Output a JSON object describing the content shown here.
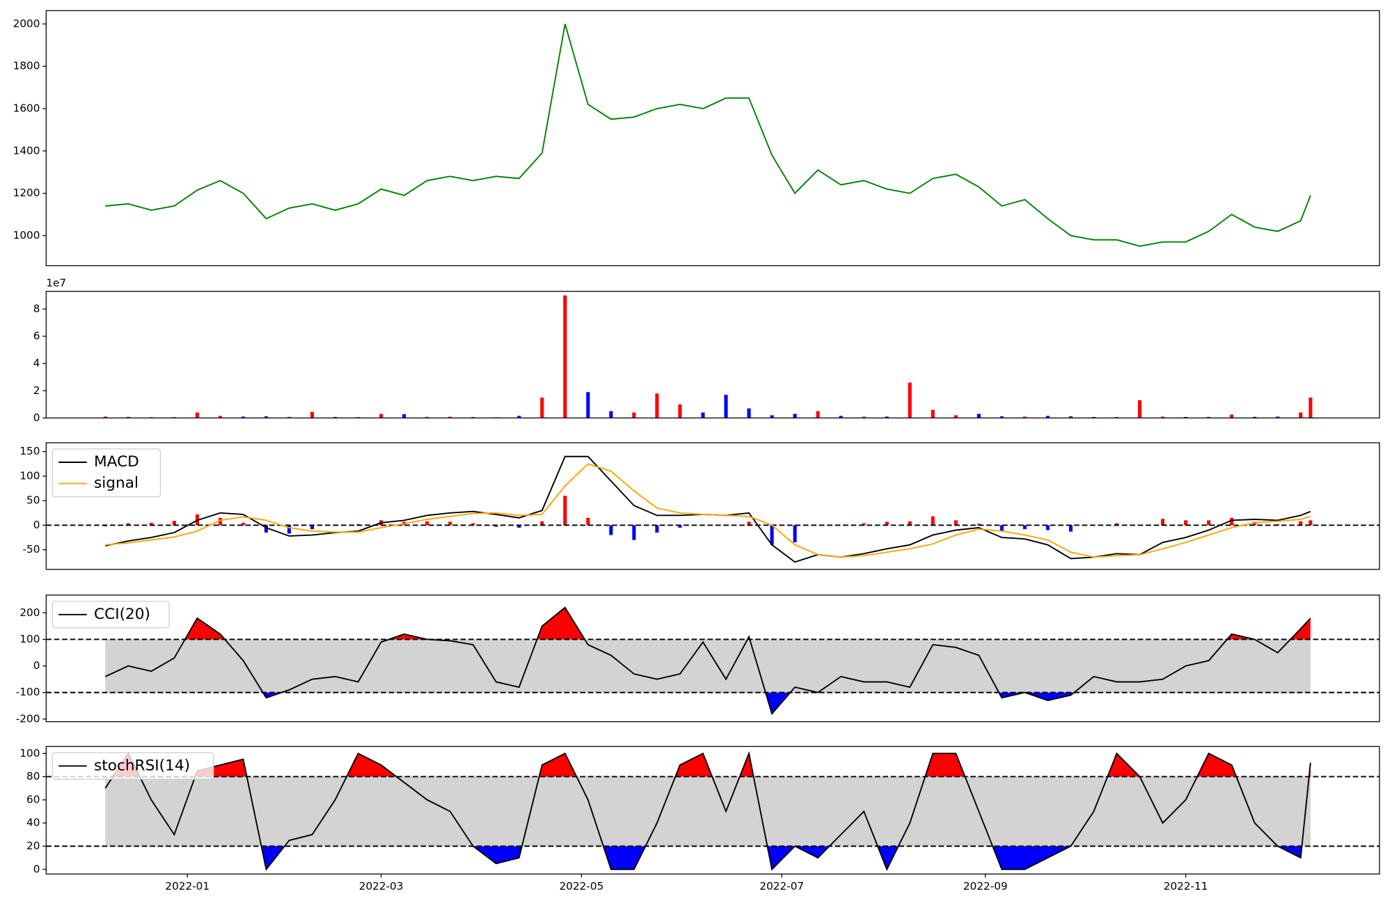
{
  "chart_data": [
    {
      "type": "line",
      "color": "#008000",
      "x": [
        "2021-12-07",
        "2021-12-14",
        "2021-12-21",
        "2021-12-28",
        "2022-01-04",
        "2022-01-11",
        "2022-01-18",
        "2022-01-25",
        "2022-02-01",
        "2022-02-08",
        "2022-02-15",
        "2022-02-22",
        "2022-03-01",
        "2022-03-08",
        "2022-03-15",
        "2022-03-22",
        "2022-03-29",
        "2022-04-05",
        "2022-04-12",
        "2022-04-19",
        "2022-04-26",
        "2022-05-03",
        "2022-05-10",
        "2022-05-17",
        "2022-05-24",
        "2022-05-31",
        "2022-06-07",
        "2022-06-14",
        "2022-06-21",
        "2022-06-28",
        "2022-07-05",
        "2022-07-12",
        "2022-07-19",
        "2022-07-26",
        "2022-08-02",
        "2022-08-09",
        "2022-08-16",
        "2022-08-23",
        "2022-08-30",
        "2022-09-06",
        "2022-09-13",
        "2022-09-20",
        "2022-09-27",
        "2022-10-04",
        "2022-10-11",
        "2022-10-18",
        "2022-10-25",
        "2022-11-01",
        "2022-11-08",
        "2022-11-15",
        "2022-11-22",
        "2022-11-29",
        "2022-12-06",
        "2022-12-09"
      ],
      "values": [
        1140,
        1150,
        1120,
        1140,
        1215,
        1260,
        1200,
        1080,
        1130,
        1150,
        1120,
        1150,
        1220,
        1190,
        1260,
        1280,
        1260,
        1280,
        1270,
        1390,
        2000,
        1620,
        1550,
        1560,
        1600,
        1620,
        1600,
        1650,
        1650,
        1380,
        1200,
        1310,
        1240,
        1260,
        1220,
        1200,
        1270,
        1290,
        1230,
        1140,
        1170,
        1080,
        1000,
        980,
        980,
        950,
        970,
        970,
        1020,
        1100,
        1040,
        1020,
        1070,
        1190
      ],
      "ylim": [
        858,
        2063
      ],
      "yticks": [
        1000,
        1200,
        1400,
        1600,
        1800,
        2000
      ]
    },
    {
      "type": "bar",
      "values": [
        1000000,
        800000,
        500000,
        600000,
        4000000,
        1500000,
        1000000,
        1200000,
        800000,
        4500000,
        700000,
        600000,
        3000000,
        2800000,
        800000,
        900000,
        600000,
        500000,
        1500000,
        15000000,
        90000000,
        19000000,
        5000000,
        4000000,
        18000000,
        10000000,
        4000000,
        17000000,
        7000000,
        2000000,
        3000000,
        5000000,
        1500000,
        1000000,
        1000000,
        26000000,
        6000000,
        2000000,
        3000000,
        1200000,
        1000000,
        1500000,
        1200000,
        700000,
        600000,
        13000000,
        1000000,
        700000,
        800000,
        2500000,
        800000,
        1000000,
        4000000,
        15000000
      ],
      "bar_colors": [
        "#ff0000",
        "#ff0000",
        "#0000ff",
        "#ff0000",
        "#ff0000",
        "#ff0000",
        "#0000ff",
        "#0000ff",
        "#ff0000",
        "#ff0000",
        "#0000ff",
        "#ff0000",
        "#ff0000",
        "#0000ff",
        "#ff0000",
        "#ff0000",
        "#0000ff",
        "#ff0000",
        "#0000ff",
        "#ff0000",
        "#ff0000",
        "#0000ff",
        "#0000ff",
        "#ff0000",
        "#ff0000",
        "#ff0000",
        "#0000ff",
        "#0000ff",
        "#0000ff",
        "#0000ff",
        "#0000ff",
        "#ff0000",
        "#0000ff",
        "#ff0000",
        "#0000ff",
        "#ff0000",
        "#ff0000",
        "#ff0000",
        "#0000ff",
        "#0000ff",
        "#ff0000",
        "#0000ff",
        "#0000ff",
        "#0000ff",
        "#0000ff",
        "#ff0000",
        "#ff0000",
        "#0000ff",
        "#ff0000",
        "#ff0000",
        "#0000ff",
        "#0000ff",
        "#ff0000",
        "#ff0000"
      ],
      "ylim": [
        0,
        93000000
      ],
      "yticks": [
        0,
        {
          "value": 20000000,
          "label": "2"
        },
        {
          "value": 40000000,
          "label": "4"
        },
        {
          "value": 60000000,
          "label": "6"
        },
        {
          "value": 80000000,
          "label": "8"
        }
      ],
      "y_offset_label": "1e7"
    },
    {
      "type": "line",
      "series": [
        {
          "name": "MACD",
          "color": "#000000",
          "values": [
            -42,
            -32,
            -25,
            -15,
            10,
            25,
            22,
            -5,
            -22,
            -20,
            -15,
            -12,
            5,
            10,
            20,
            25,
            28,
            22,
            15,
            30,
            140,
            140,
            90,
            40,
            20,
            20,
            22,
            20,
            25,
            -40,
            -75,
            -60,
            -65,
            -58,
            -48,
            -40,
            -20,
            -10,
            -5,
            -25,
            -28,
            -40,
            -68,
            -65,
            -58,
            -60,
            -35,
            -25,
            -10,
            10,
            12,
            10,
            20,
            28
          ]
        },
        {
          "name": "signal",
          "color": "#ffa500",
          "values": [
            -40,
            -36,
            -30,
            -24,
            -12,
            10,
            17,
            10,
            -5,
            -12,
            -14,
            -14,
            -5,
            3,
            12,
            18,
            24,
            25,
            20,
            22,
            80,
            125,
            110,
            70,
            35,
            25,
            22,
            20,
            18,
            0,
            -40,
            -60,
            -65,
            -62,
            -55,
            -48,
            -38,
            -20,
            -8,
            -12,
            -20,
            -30,
            -55,
            -65,
            -62,
            -60,
            -48,
            -35,
            -20,
            -5,
            5,
            8,
            12,
            18
          ]
        }
      ],
      "histogram": {
        "values": [
          -2,
          4,
          5,
          9,
          22,
          15,
          5,
          -15,
          -17,
          -8,
          -1,
          2,
          10,
          7,
          8,
          7,
          4,
          -3,
          -5,
          8,
          60,
          15,
          -20,
          -30,
          -15,
          -5,
          0,
          0,
          7,
          -40,
          -35,
          0,
          0,
          4,
          7,
          8,
          18,
          10,
          3,
          -13,
          -8,
          -10,
          -13,
          0,
          4,
          0,
          13,
          10,
          10,
          15,
          7,
          2,
          8,
          10
        ],
        "pos_color": "#ff0000",
        "neg_color": "#0000ff"
      },
      "hlines": [
        0
      ],
      "ylim": [
        -90,
        168
      ],
      "yticks": [
        -50,
        0,
        50,
        100,
        150
      ],
      "legend": "upper left"
    },
    {
      "type": "oscillator",
      "series": [
        {
          "name": "CCI(20)",
          "color": "#000000",
          "values": [
            -40,
            0,
            -20,
            30,
            180,
            120,
            20,
            -120,
            -90,
            -50,
            -40,
            -60,
            90,
            120,
            100,
            95,
            80,
            -60,
            -80,
            150,
            220,
            80,
            40,
            -30,
            -50,
            -30,
            90,
            -50,
            110,
            -180,
            -80,
            -100,
            -40,
            -60,
            -60,
            -80,
            80,
            70,
            40,
            -120,
            -100,
            -130,
            -110,
            -40,
            -60,
            -60,
            -50,
            0,
            20,
            120,
            100,
            50,
            140,
            180
          ]
        }
      ],
      "thresholds": [
        -100,
        100
      ],
      "band_color": "#d3d3d3",
      "above_color": "#ff0000",
      "below_color": "#0000ff",
      "ylim": [
        -210,
        267
      ],
      "yticks": [
        -200,
        -100,
        0,
        100,
        200
      ],
      "legend": "upper left"
    },
    {
      "type": "oscillator",
      "series": [
        {
          "name": "stochRSI(14)",
          "color": "#000000",
          "values": [
            70,
            100,
            60,
            30,
            85,
            90,
            95,
            0,
            25,
            30,
            60,
            100,
            90,
            75,
            60,
            50,
            20,
            5,
            10,
            90,
            100,
            60,
            0,
            0,
            40,
            90,
            100,
            50,
            100,
            0,
            20,
            10,
            30,
            50,
            0,
            40,
            100,
            100,
            50,
            0,
            0,
            10,
            20,
            50,
            100,
            80,
            40,
            60,
            100,
            90,
            40,
            20,
            10,
            92
          ]
        }
      ],
      "thresholds": [
        20,
        80
      ],
      "band_color": "#d3d3d3",
      "above_color": "#ff0000",
      "below_color": "#0000ff",
      "ylim": [
        -4,
        106
      ],
      "yticks": [
        0,
        20,
        40,
        60,
        80,
        100
      ],
      "legend": "upper left",
      "xlim": [
        "2021-11-19",
        "2022-12-30"
      ],
      "xticks": [
        {
          "value": "2022-01-01",
          "label": "2022-01"
        },
        {
          "value": "2022-03-01",
          "label": "2022-03"
        },
        {
          "value": "2022-05-01",
          "label": "2022-05"
        },
        {
          "value": "2022-07-01",
          "label": "2022-07"
        },
        {
          "value": "2022-09-01",
          "label": "2022-09"
        },
        {
          "value": "2022-11-01",
          "label": "2022-11"
        }
      ]
    }
  ]
}
